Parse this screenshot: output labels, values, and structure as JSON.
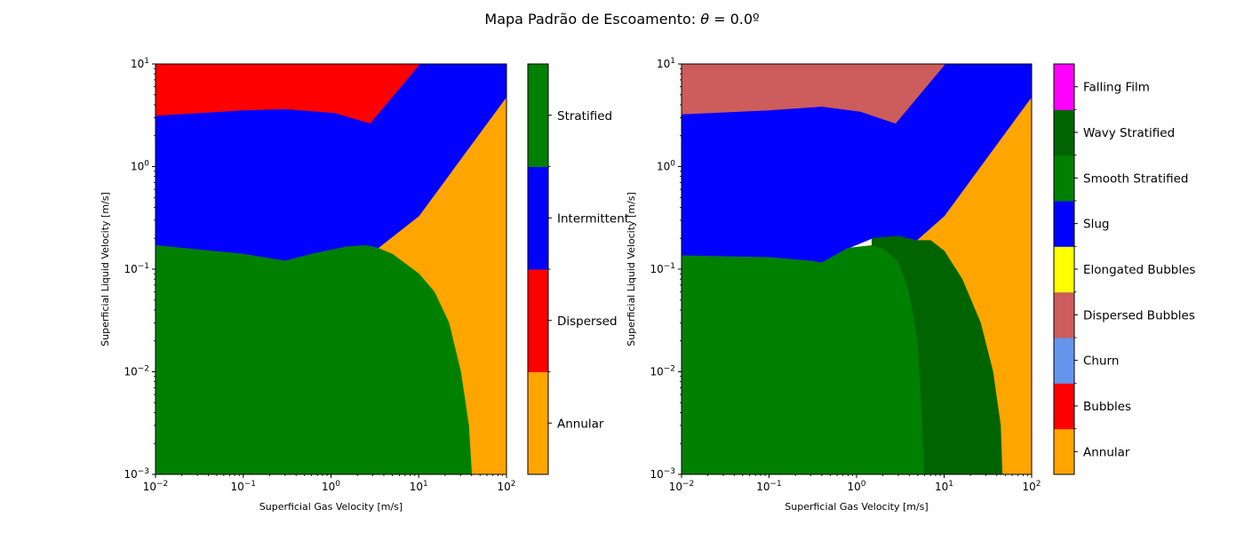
{
  "figure": {
    "title_prefix": "Mapa Padrão de Escoamento: ",
    "title_symbol": "θ",
    "title_suffix": " = 0.0º"
  },
  "chart_data": [
    {
      "type": "heatmap",
      "subtype": "flow-pattern-regime-map",
      "xlabel": "Superficial Gas Velocity [m/s]",
      "ylabel": "Superficial Liquid Velocity [m/s]",
      "xscale": "log",
      "yscale": "log",
      "xlim": [
        0.01,
        100
      ],
      "ylim": [
        0.001,
        10
      ],
      "x_ticks": [
        {
          "base": "10",
          "exp": "−2",
          "value": 0.01
        },
        {
          "base": "10",
          "exp": "−1",
          "value": 0.1
        },
        {
          "base": "10",
          "exp": "0",
          "value": 1
        },
        {
          "base": "10",
          "exp": "1",
          "value": 10
        },
        {
          "base": "10",
          "exp": "2",
          "value": 100
        }
      ],
      "y_ticks": [
        {
          "base": "10",
          "exp": "−3",
          "value": 0.001
        },
        {
          "base": "10",
          "exp": "−2",
          "value": 0.01
        },
        {
          "base": "10",
          "exp": "−1",
          "value": 0.1
        },
        {
          "base": "10",
          "exp": "0",
          "value": 1
        },
        {
          "base": "10",
          "exp": "1",
          "value": 10
        }
      ],
      "colorbar": [
        {
          "label": "Annular",
          "color": "#ffa500"
        },
        {
          "label": "Dispersed",
          "color": "#ff0000"
        },
        {
          "label": "Intermittent",
          "color": "#0000ff"
        },
        {
          "label": "Stratified",
          "color": "#008000"
        }
      ],
      "regions": [
        {
          "label": "Annular",
          "color": "#ffa500",
          "boundary": [
            [
              3.4,
              0.16
            ],
            [
              10,
              0.33
            ],
            [
              100,
              4.8
            ],
            [
              100,
              0.001
            ],
            [
              40,
              0.001
            ],
            [
              37,
              0.003
            ],
            [
              30,
              0.01
            ],
            [
              22,
              0.03
            ],
            [
              15,
              0.06
            ],
            [
              10,
              0.09
            ],
            [
              5,
              0.14
            ]
          ]
        },
        {
          "label": "Dispersed",
          "color": "#ff0000",
          "boundary": [
            [
              0.01,
              10
            ],
            [
              10.5,
              10
            ],
            [
              2.8,
              2.6
            ],
            [
              1.1,
              3.3
            ],
            [
              0.3,
              3.6
            ],
            [
              0.1,
              3.5
            ],
            [
              0.01,
              3.1
            ]
          ]
        },
        {
          "label": "Intermittent",
          "color": "#0000ff",
          "boundary": [
            [
              0.01,
              3.1
            ],
            [
              0.1,
              3.5
            ],
            [
              0.3,
              3.6
            ],
            [
              1.1,
              3.3
            ],
            [
              2.8,
              2.6
            ],
            [
              10.5,
              10
            ],
            [
              100,
              10
            ],
            [
              100,
              4.8
            ],
            [
              10,
              0.33
            ],
            [
              3.4,
              0.16
            ],
            [
              2.5,
              0.17
            ],
            [
              1.5,
              0.165
            ],
            [
              0.6,
              0.14
            ],
            [
              0.3,
              0.12
            ],
            [
              0.1,
              0.14
            ],
            [
              0.01,
              0.17
            ]
          ]
        },
        {
          "label": "Stratified",
          "color": "#008000",
          "boundary": [
            [
              0.01,
              0.17
            ],
            [
              0.1,
              0.14
            ],
            [
              0.3,
              0.12
            ],
            [
              0.6,
              0.14
            ],
            [
              1.5,
              0.165
            ],
            [
              2.5,
              0.17
            ],
            [
              3.4,
              0.16
            ],
            [
              5,
              0.14
            ],
            [
              10,
              0.09
            ],
            [
              15,
              0.06
            ],
            [
              22,
              0.03
            ],
            [
              30,
              0.01
            ],
            [
              37,
              0.003
            ],
            [
              40,
              0.001
            ],
            [
              0.01,
              0.001
            ]
          ]
        }
      ]
    },
    {
      "type": "heatmap",
      "subtype": "flow-pattern-regime-map",
      "xlabel": "Superficial Gas Velocity [m/s]",
      "ylabel": "Superficial Liquid Velocity [m/s]",
      "xscale": "log",
      "yscale": "log",
      "xlim": [
        0.01,
        100
      ],
      "ylim": [
        0.001,
        10
      ],
      "x_ticks": [
        {
          "base": "10",
          "exp": "−2",
          "value": 0.01
        },
        {
          "base": "10",
          "exp": "−1",
          "value": 0.1
        },
        {
          "base": "10",
          "exp": "0",
          "value": 1
        },
        {
          "base": "10",
          "exp": "1",
          "value": 10
        },
        {
          "base": "10",
          "exp": "2",
          "value": 100
        }
      ],
      "y_ticks": [
        {
          "base": "10",
          "exp": "−3",
          "value": 0.001
        },
        {
          "base": "10",
          "exp": "−2",
          "value": 0.01
        },
        {
          "base": "10",
          "exp": "−1",
          "value": 0.1
        },
        {
          "base": "10",
          "exp": "0",
          "value": 1
        },
        {
          "base": "10",
          "exp": "1",
          "value": 10
        }
      ],
      "colorbar": [
        {
          "label": "Annular",
          "color": "#ffa500"
        },
        {
          "label": "Bubbles",
          "color": "#ff0000"
        },
        {
          "label": "Churn",
          "color": "#6495ed"
        },
        {
          "label": "Dispersed Bubbles",
          "color": "#cd5c5c"
        },
        {
          "label": "Elongated Bubbles",
          "color": "#ffff00"
        },
        {
          "label": "Slug",
          "color": "#0000ff"
        },
        {
          "label": "Smooth Stratified",
          "color": "#008000"
        },
        {
          "label": "Wavy Stratified",
          "color": "#006400"
        },
        {
          "label": "Falling Film",
          "color": "#ff00ff"
        }
      ],
      "regions": [
        {
          "label": "Annular",
          "color": "#ffa500",
          "boundary": [
            [
              4.8,
              0.19
            ],
            [
              10,
              0.33
            ],
            [
              100,
              4.8
            ],
            [
              100,
              0.001
            ],
            [
              46,
              0.001
            ],
            [
              44,
              0.003
            ],
            [
              36,
              0.01
            ],
            [
              26,
              0.03
            ],
            [
              16,
              0.08
            ],
            [
              10,
              0.15
            ],
            [
              7,
              0.19
            ]
          ]
        },
        {
          "label": "Dispersed Bubbles",
          "color": "#cd5c5c",
          "boundary": [
            [
              0.01,
              10
            ],
            [
              10.5,
              10
            ],
            [
              2.8,
              2.6
            ],
            [
              1.1,
              3.4
            ],
            [
              0.4,
              3.8
            ],
            [
              0.1,
              3.5
            ],
            [
              0.01,
              3.2
            ]
          ]
        },
        {
          "label": "Slug",
          "color": "#0000ff",
          "boundary": [
            [
              0.01,
              3.2
            ],
            [
              0.1,
              3.5
            ],
            [
              0.4,
              3.8
            ],
            [
              1.1,
              3.4
            ],
            [
              2.8,
              2.6
            ],
            [
              10.5,
              10
            ],
            [
              100,
              10
            ],
            [
              100,
              4.8
            ],
            [
              10,
              0.33
            ],
            [
              4.8,
              0.19
            ],
            [
              3,
              0.21
            ],
            [
              1.5,
              0.2
            ],
            [
              0.8,
              0.16
            ],
            [
              0.4,
              0.115
            ],
            [
              0.3,
              0.12
            ],
            [
              0.1,
              0.13
            ],
            [
              0.01,
              0.135
            ]
          ]
        },
        {
          "label": "Smooth Stratified",
          "color": "#008000",
          "boundary": [
            [
              0.01,
              0.135
            ],
            [
              0.1,
              0.13
            ],
            [
              0.3,
              0.12
            ],
            [
              0.4,
              0.115
            ],
            [
              0.8,
              0.16
            ],
            [
              1.5,
              0.17
            ],
            [
              2,
              0.16
            ],
            [
              3,
              0.12
            ],
            [
              4,
              0.06
            ],
            [
              5,
              0.02
            ],
            [
              5.5,
              0.005
            ],
            [
              6,
              0.001
            ],
            [
              0.01,
              0.001
            ]
          ]
        },
        {
          "label": "Wavy Stratified",
          "color": "#006400",
          "boundary": [
            [
              1.5,
              0.2
            ],
            [
              3,
              0.21
            ],
            [
              4.8,
              0.19
            ],
            [
              7,
              0.19
            ],
            [
              10,
              0.15
            ],
            [
              16,
              0.08
            ],
            [
              26,
              0.03
            ],
            [
              36,
              0.01
            ],
            [
              44,
              0.003
            ],
            [
              46,
              0.001
            ],
            [
              6,
              0.001
            ],
            [
              5.5,
              0.005
            ],
            [
              5,
              0.02
            ],
            [
              4,
              0.06
            ],
            [
              3,
              0.12
            ],
            [
              2,
              0.16
            ],
            [
              1.5,
              0.17
            ]
          ]
        }
      ]
    }
  ]
}
